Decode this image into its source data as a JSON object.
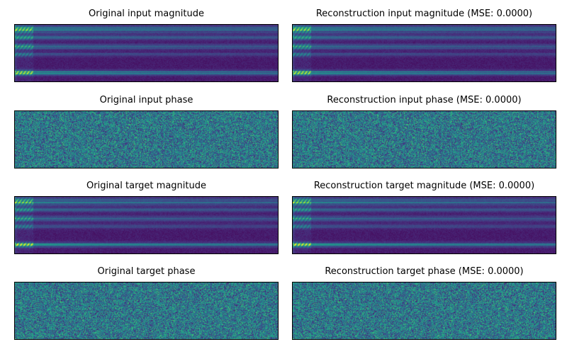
{
  "chart_data": [
    {
      "type": "heatmap",
      "title": "Original input magnitude",
      "kind": "magnitude",
      "variant": 0,
      "colormap": "viridis",
      "axes_ticks": false
    },
    {
      "type": "heatmap",
      "title": "Reconstruction input magnitude (MSE: 0.0000)",
      "kind": "magnitude",
      "variant": 0,
      "colormap": "viridis",
      "axes_ticks": false
    },
    {
      "type": "heatmap",
      "title": "Original input phase",
      "kind": "phase",
      "variant": 1,
      "colormap": "viridis",
      "axes_ticks": false
    },
    {
      "type": "heatmap",
      "title": "Reconstruction input phase (MSE: 0.0000)",
      "kind": "phase",
      "variant": 1,
      "colormap": "viridis",
      "axes_ticks": false
    },
    {
      "type": "heatmap",
      "title": "Original target magnitude",
      "kind": "magnitude",
      "variant": 2,
      "colormap": "viridis",
      "axes_ticks": false
    },
    {
      "type": "heatmap",
      "title": "Reconstruction target magnitude (MSE: 0.0000)",
      "kind": "magnitude",
      "variant": 2,
      "colormap": "viridis",
      "axes_ticks": false
    },
    {
      "type": "heatmap",
      "title": "Original target phase",
      "kind": "phase",
      "variant": 3,
      "colormap": "viridis",
      "axes_ticks": false
    },
    {
      "type": "heatmap",
      "title": "Reconstruction target phase (MSE: 0.0000)",
      "kind": "phase",
      "variant": 3,
      "colormap": "viridis",
      "axes_ticks": false
    }
  ]
}
